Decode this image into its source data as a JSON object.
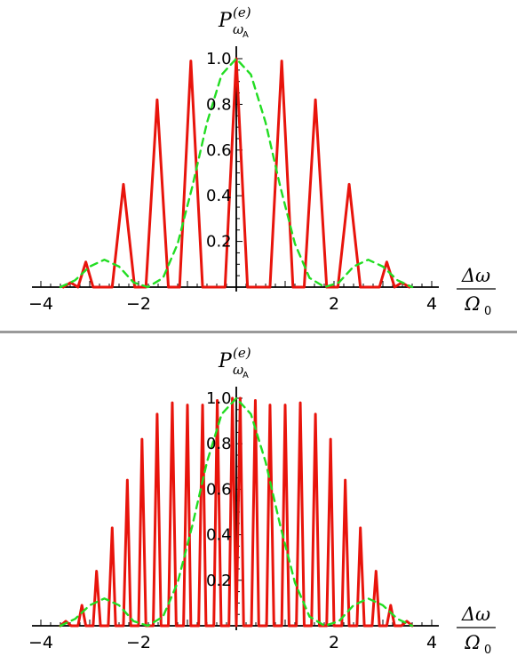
{
  "chart_data": [
    {
      "type": "line",
      "ylabel": {
        "main": "P",
        "sub": "ω",
        "subsub": "A",
        "sup": "(e)"
      },
      "xlabel": {
        "numerator": "Δω",
        "denominator": "Ω",
        "denominator_sub": "0"
      },
      "xlim": [
        -4,
        4
      ],
      "ylim": [
        0,
        1
      ],
      "x_ticks": [
        -4,
        -2,
        2,
        4
      ],
      "x_tick_labels": [
        "−4",
        "−2",
        "2",
        "4"
      ],
      "y_ticks": [
        0.2,
        0.4,
        0.6,
        0.8,
        1.0
      ],
      "y_tick_labels": [
        "0.2",
        "0.4",
        "0.6",
        "0.8",
        "1.0"
      ],
      "grid": false,
      "series": [
        {
          "style": "solid",
          "color": "#e8140c",
          "x": [
            -3.54,
            -3.39,
            -3.24,
            -3.08,
            -2.93,
            -2.78,
            -2.54,
            -2.31,
            -2.08,
            -1.85,
            -1.62,
            -1.39,
            -1.16,
            -0.93,
            -0.69,
            -0.46,
            -0.23,
            0.0,
            0.23,
            0.46,
            0.69,
            0.93,
            1.16,
            1.39,
            1.62,
            1.85,
            2.08,
            2.31,
            2.54,
            2.78,
            2.93,
            3.08,
            3.24,
            3.39,
            3.54
          ],
          "values": [
            0.0,
            0.02,
            0.0,
            0.11,
            0.0,
            0.0,
            0.0,
            0.45,
            0.0,
            0.0,
            0.82,
            0.0,
            0.0,
            0.99,
            0.0,
            0.0,
            0.0,
            1.0,
            0.0,
            0.0,
            0.0,
            0.99,
            0.0,
            0.0,
            0.82,
            0.0,
            0.0,
            0.45,
            0.0,
            0.0,
            0.0,
            0.11,
            0.0,
            0.02,
            0.0
          ]
        },
        {
          "style": "dashed",
          "color": "#22dd22",
          "x": [
            -3.6,
            -3.3,
            -3.0,
            -2.7,
            -2.4,
            -2.1,
            -1.81,
            -1.5,
            -1.2,
            -0.9,
            -0.6,
            -0.3,
            0.0,
            0.3,
            0.6,
            0.9,
            1.2,
            1.5,
            1.81,
            2.1,
            2.4,
            2.7,
            3.0,
            3.3,
            3.6
          ],
          "values": [
            0.0,
            0.03,
            0.09,
            0.12,
            0.09,
            0.02,
            0.0,
            0.04,
            0.19,
            0.44,
            0.72,
            0.93,
            1.0,
            0.93,
            0.72,
            0.44,
            0.19,
            0.04,
            0.0,
            0.02,
            0.09,
            0.12,
            0.09,
            0.03,
            0.0
          ]
        }
      ]
    },
    {
      "type": "line",
      "ylabel": {
        "main": "P",
        "sub": "ω",
        "subsub": "A",
        "sup": "(e)"
      },
      "xlabel": {
        "numerator": "Δω",
        "denominator": "Ω",
        "denominator_sub": "0"
      },
      "xlim": [
        -4,
        4
      ],
      "ylim": [
        0,
        1
      ],
      "x_ticks": [
        -4,
        -2,
        2,
        4
      ],
      "x_tick_labels": [
        "−4",
        "−2",
        "2",
        "4"
      ],
      "y_ticks": [
        0.2,
        0.4,
        0.6,
        0.8,
        1.0
      ],
      "y_tick_labels": [
        "0.2",
        "0.4",
        "0.6",
        "0.8",
        "1.0"
      ],
      "grid": false,
      "series": [
        {
          "style": "solid",
          "color": "#e8140c",
          "x": [
            -3.6,
            -3.49,
            -3.38,
            -3.31,
            -3.24,
            -3.16,
            -3.08,
            -3.01,
            -2.93,
            -2.86,
            -2.78,
            -2.7,
            -2.62,
            -2.54,
            -2.47,
            -2.39,
            -2.31,
            -2.23,
            -2.16,
            -2.08,
            -2.0,
            -1.93,
            -1.85,
            -1.77,
            -1.7,
            -1.62,
            -1.54,
            -1.46,
            -1.39,
            -1.31,
            -1.23,
            -1.16,
            -1.08,
            -1.0,
            -0.93,
            -0.85,
            -0.77,
            -0.69,
            -0.62,
            -0.54,
            -0.46,
            -0.39,
            -0.31,
            -0.23,
            -0.15,
            -0.08,
            0.0,
            0.08,
            0.15,
            0.23,
            0.31,
            0.39,
            0.46,
            0.54,
            0.62,
            0.69,
            0.77,
            0.85,
            0.93,
            1.0,
            1.08,
            1.16,
            1.23,
            1.31,
            1.39,
            1.46,
            1.54,
            1.62,
            1.7,
            1.77,
            1.85,
            1.93,
            2.0,
            2.08,
            2.16,
            2.23,
            2.31,
            2.39,
            2.47,
            2.54,
            2.62,
            2.7,
            2.78,
            2.86,
            2.93,
            3.01,
            3.08,
            3.16,
            3.24,
            3.31,
            3.38,
            3.49,
            3.6
          ],
          "values": [
            0.0,
            0.02,
            0.0,
            0.0,
            0.0,
            0.09,
            0.0,
            0.0,
            0.0,
            0.24,
            0.0,
            0.0,
            0.0,
            0.43,
            0.0,
            0.0,
            0.0,
            0.64,
            0.0,
            0.0,
            0.0,
            0.82,
            0.0,
            0.0,
            0.0,
            0.93,
            0.0,
            0.0,
            0.0,
            0.98,
            0.0,
            0.0,
            0.0,
            0.97,
            0.0,
            0.0,
            0.0,
            0.97,
            0.0,
            0.0,
            0.0,
            0.99,
            0.0,
            0.0,
            0.0,
            1.0,
            0.0,
            1.0,
            0.0,
            0.0,
            0.0,
            0.99,
            0.0,
            0.0,
            0.0,
            0.97,
            0.0,
            0.0,
            0.0,
            0.97,
            0.0,
            0.0,
            0.0,
            0.98,
            0.0,
            0.0,
            0.0,
            0.93,
            0.0,
            0.0,
            0.0,
            0.82,
            0.0,
            0.0,
            0.0,
            0.64,
            0.0,
            0.0,
            0.0,
            0.43,
            0.0,
            0.0,
            0.0,
            0.24,
            0.0,
            0.0,
            0.0,
            0.09,
            0.0,
            0.0,
            0.0,
            0.02,
            0.0
          ]
        },
        {
          "style": "dashed",
          "color": "#22dd22",
          "x": [
            -3.6,
            -3.3,
            -3.0,
            -2.7,
            -2.4,
            -2.1,
            -1.81,
            -1.5,
            -1.2,
            -0.9,
            -0.6,
            -0.3,
            0.0,
            0.3,
            0.6,
            0.9,
            1.2,
            1.5,
            1.81,
            2.1,
            2.4,
            2.7,
            3.0,
            3.3,
            3.6
          ],
          "values": [
            0.0,
            0.03,
            0.09,
            0.12,
            0.09,
            0.02,
            0.0,
            0.04,
            0.19,
            0.44,
            0.72,
            0.93,
            1.0,
            0.93,
            0.72,
            0.44,
            0.19,
            0.04,
            0.0,
            0.02,
            0.09,
            0.12,
            0.09,
            0.03,
            0.0
          ]
        }
      ]
    }
  ]
}
